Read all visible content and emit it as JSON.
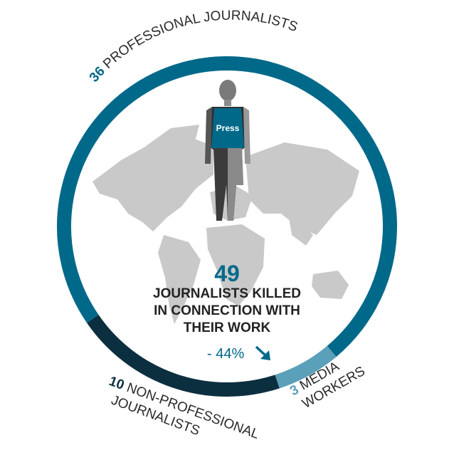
{
  "chart_data": {
    "type": "pie",
    "donut": true,
    "total": 49,
    "title": "JOURNALISTS KILLED IN CONNECTION WITH THEIR WORK",
    "change": "- 44%",
    "change_direction": "down",
    "series": [
      {
        "name": "PROFESSIONAL JOURNALISTS",
        "value": 36,
        "color": "#00698a"
      },
      {
        "name": "NON-PROFESSIONAL JOURNALISTS",
        "value": 10,
        "color": "#0c2f40"
      },
      {
        "name": "MEDIA WORKERS",
        "value": 3,
        "color": "#5aa0b8"
      }
    ]
  },
  "labels": {
    "professional_num": "36",
    "professional_text": "PROFESSIONAL JOURNALISTS",
    "nonpro_num": "10",
    "nonpro_line1": "NON-PROFESSIONAL",
    "nonpro_line2": "JOURNALISTS",
    "media_num": "3",
    "media_line1": "MEDIA",
    "media_line2": "WORKERS"
  },
  "illustration": {
    "vest_text": "Press",
    "map_color": "#c9c9c9"
  }
}
